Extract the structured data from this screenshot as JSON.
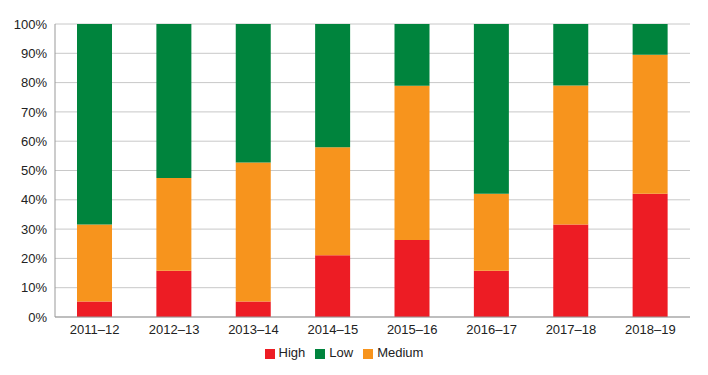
{
  "chart_data": {
    "type": "bar",
    "stacked": true,
    "grid": true,
    "legend": "bottom",
    "categories": [
      "2011–12",
      "2012–13",
      "2013–14",
      "2014–15",
      "2015–16",
      "2016–17",
      "2017–18",
      "2018–19"
    ],
    "series": [
      {
        "name": "High",
        "color": "#ed1c24",
        "values": [
          5.3,
          15.8,
          5.3,
          21.1,
          26.3,
          15.8,
          31.6,
          42.1
        ]
      },
      {
        "name": "Medium",
        "color": "#f7941d",
        "values": [
          26.3,
          31.6,
          47.4,
          36.8,
          52.6,
          26.3,
          47.4,
          47.4
        ]
      },
      {
        "name": "Low",
        "color": "#00843d",
        "values": [
          68.4,
          52.6,
          47.3,
          42.1,
          21.1,
          57.9,
          21.0,
          10.5
        ]
      }
    ],
    "ylim": [
      0,
      100
    ],
    "yticks": [
      {
        "value": 0,
        "label": "0%"
      },
      {
        "value": 10,
        "label": "10%"
      },
      {
        "value": 20,
        "label": "20%"
      },
      {
        "value": 30,
        "label": "30%"
      },
      {
        "value": 40,
        "label": "40%"
      },
      {
        "value": 50,
        "label": "50%"
      },
      {
        "value": 60,
        "label": "60%"
      },
      {
        "value": 70,
        "label": "70%"
      },
      {
        "value": 80,
        "label": "80%"
      },
      {
        "value": 90,
        "label": "90%"
      },
      {
        "value": 100,
        "label": "100%"
      }
    ]
  }
}
